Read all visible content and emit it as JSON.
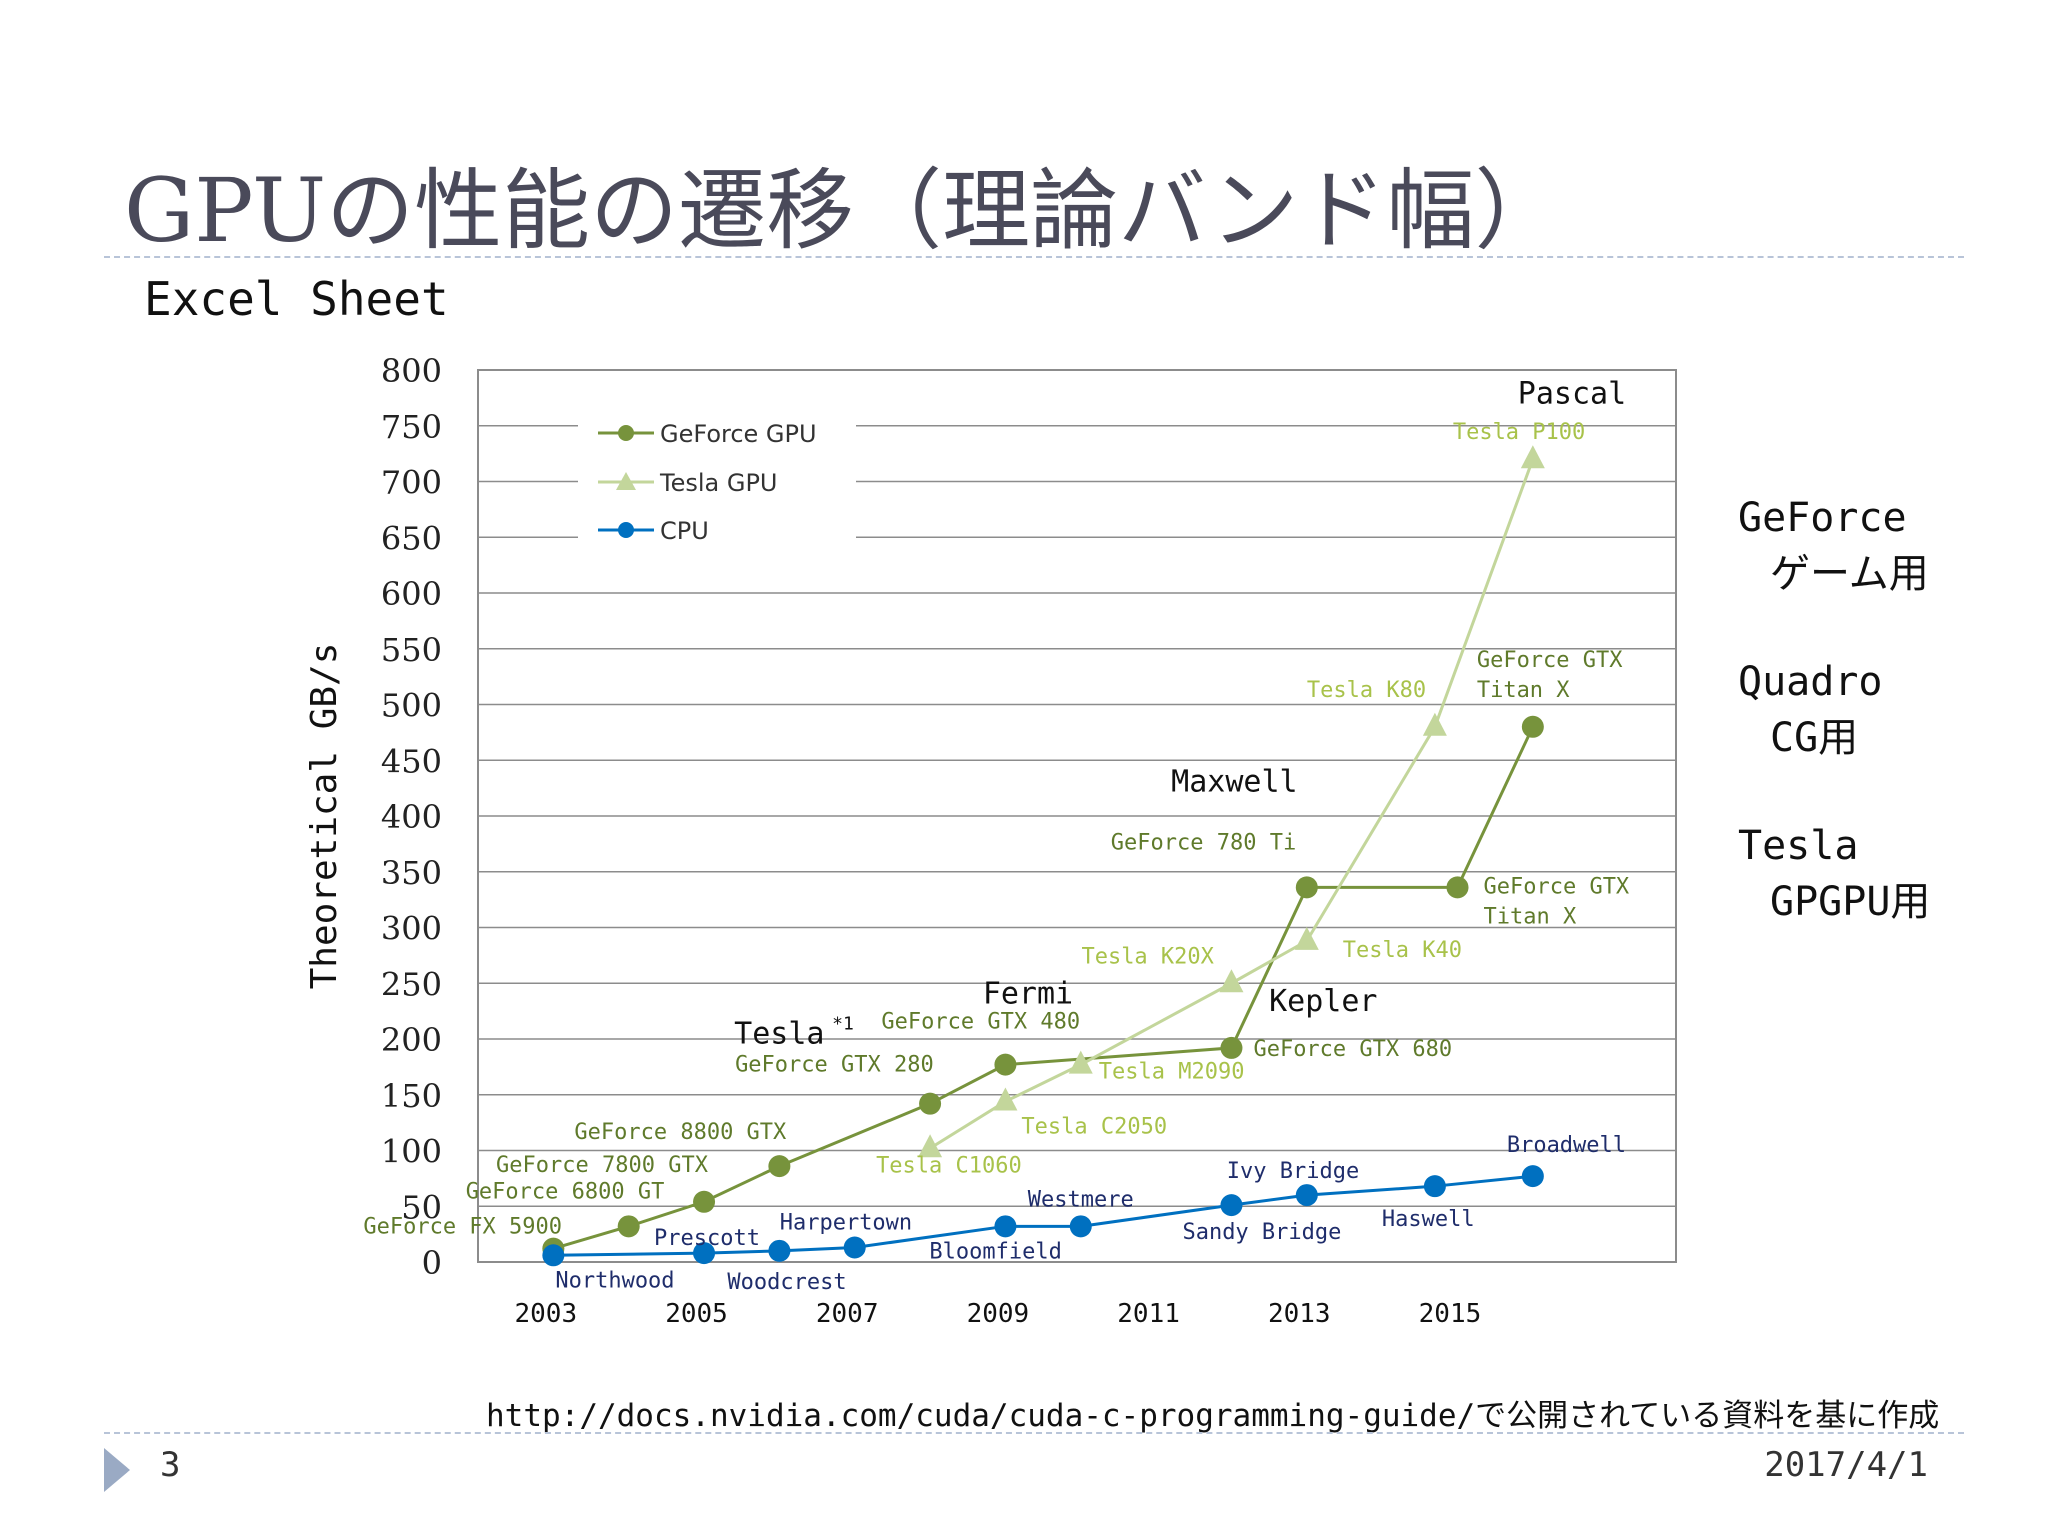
{
  "slide": {
    "title": "GPUの性能の遷移（理論バンド幅）",
    "subtitle": "Excel Sheet",
    "source_note": "http://docs.nvidia.com/cuda/cuda-c-programming-guide/で公開されている資料を基に作成",
    "page_number": "3",
    "date": "2017/4/1"
  },
  "side_labels": [
    {
      "name": "GeForce",
      "use": "ゲーム用"
    },
    {
      "name": "Quadro",
      "use": "CG用"
    },
    {
      "name": "Tesla",
      "use": "GPGPU用"
    }
  ],
  "chart_data": {
    "type": "line",
    "ylabel": "Theoretical GB/s",
    "xlabel": "",
    "ylim": [
      0,
      800
    ],
    "xlim": [
      2002.1,
      2018.0
    ],
    "y_ticks": [
      0,
      50,
      100,
      150,
      200,
      250,
      300,
      350,
      400,
      450,
      500,
      550,
      600,
      650,
      700,
      750,
      800
    ],
    "x_ticks": [
      "2003",
      "2005",
      "2007",
      "2009",
      "2011",
      "2013",
      "2015"
    ],
    "grid": true,
    "legend_position": "top-left",
    "series": [
      {
        "name": "GeForce GPU",
        "color": "#77933c",
        "marker": "circle",
        "points": [
          {
            "x": 2003.1,
            "y": 12,
            "label": "GeForce FX 5900"
          },
          {
            "x": 2004.1,
            "y": 32,
            "label": "GeForce 6800 GT"
          },
          {
            "x": 2005.1,
            "y": 54,
            "label": "GeForce 7800 GTX"
          },
          {
            "x": 2006.1,
            "y": 86,
            "label": "GeForce 8800 GTX"
          },
          {
            "x": 2008.1,
            "y": 142,
            "label": "GeForce GTX 280"
          },
          {
            "x": 2009.1,
            "y": 177,
            "label": "GeForce GTX 480"
          },
          {
            "x": 2012.1,
            "y": 192,
            "label": "GeForce GTX 680"
          },
          {
            "x": 2013.1,
            "y": 336,
            "label": "GeForce 780 Ti"
          },
          {
            "x": 2015.1,
            "y": 336,
            "label": "GeForce GTX Titan X"
          },
          {
            "x": 2016.1,
            "y": 480,
            "label": "GeForce GTX Titan X"
          }
        ]
      },
      {
        "name": "Tesla GPU",
        "color": "#c3d69b",
        "marker": "triangle",
        "points": [
          {
            "x": 2008.1,
            "y": 102,
            "label": "Tesla C1060"
          },
          {
            "x": 2009.1,
            "y": 144,
            "label": "Tesla C2050"
          },
          {
            "x": 2010.1,
            "y": 177,
            "label": "Tesla M2090"
          },
          {
            "x": 2012.1,
            "y": 250,
            "label": "Tesla K20X"
          },
          {
            "x": 2013.1,
            "y": 288,
            "label": "Tesla K40"
          },
          {
            "x": 2014.8,
            "y": 480,
            "label": "Tesla K80"
          },
          {
            "x": 2016.1,
            "y": 720,
            "label": "Tesla P100"
          }
        ]
      },
      {
        "name": "CPU",
        "color": "#0070c0",
        "marker": "circle",
        "points": [
          {
            "x": 2003.1,
            "y": 6,
            "label": "Northwood"
          },
          {
            "x": 2005.1,
            "y": 8,
            "label": "Prescott"
          },
          {
            "x": 2006.1,
            "y": 10,
            "label": "Woodcrest"
          },
          {
            "x": 2007.1,
            "y": 13,
            "label": "Harpertown"
          },
          {
            "x": 2009.1,
            "y": 32,
            "label": "Bloomfield"
          },
          {
            "x": 2010.1,
            "y": 32,
            "label": "Westmere"
          },
          {
            "x": 2012.1,
            "y": 51,
            "label": "Sandy Bridge"
          },
          {
            "x": 2013.1,
            "y": 60,
            "label": "Ivy Bridge"
          },
          {
            "x": 2014.8,
            "y": 68,
            "label": "Haswell"
          },
          {
            "x": 2016.1,
            "y": 77,
            "label": "Broadwell"
          }
        ]
      }
    ],
    "annotations": [
      {
        "text": "Tesla",
        "sup": "*1",
        "x": 2005.5,
        "y": 196
      },
      {
        "text": "Fermi",
        "x": 2008.8,
        "y": 232
      },
      {
        "text": "Kepler",
        "x": 2012.6,
        "y": 225
      },
      {
        "text": "Maxwell",
        "x": 2011.3,
        "y": 422
      },
      {
        "text": "Pascal",
        "x": 2015.9,
        "y": 770
      }
    ]
  }
}
